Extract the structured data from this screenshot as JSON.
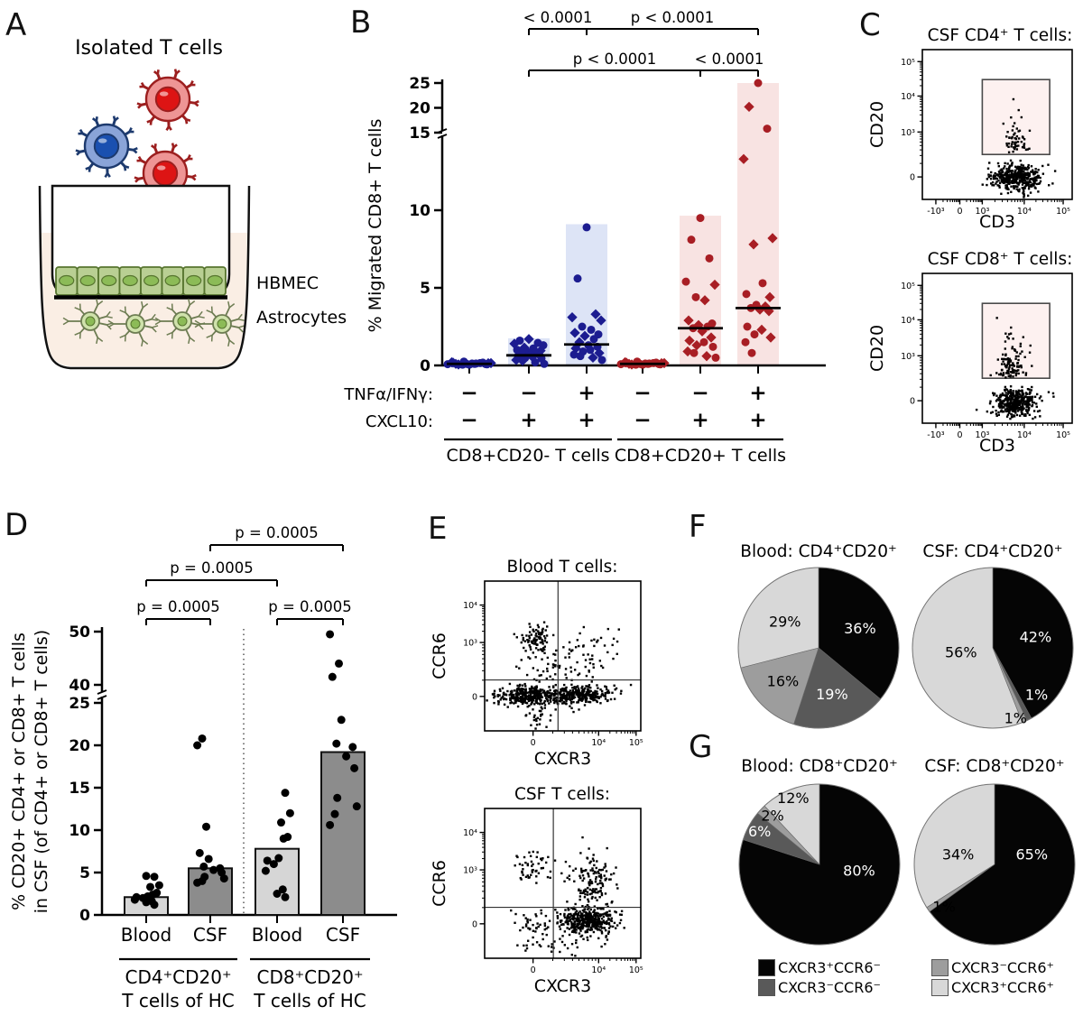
{
  "panel_labels": {
    "A": "A",
    "B": "B",
    "C": "C",
    "D": "D",
    "E": "E",
    "F": "F",
    "G": "G"
  },
  "panelA": {
    "title": "Isolated T cells",
    "hbmec_label": "HBMEC",
    "astrocytes_label": "Astrocytes",
    "colors": {
      "medium": "#faeee4",
      "cell_fill": "#b9cf93",
      "cell_nucleus": "#8cbb57",
      "cell_stroke": "#57752f",
      "astro_fill": "#cfe2ab",
      "astro_stroke": "#6d7c52",
      "red_outer": "#ee9595",
      "red_core": "#dd1414",
      "red_stroke": "#9c1f1f",
      "blue_outer": "#8aa4d8",
      "blue_core": "#1a50b0",
      "blue_stroke": "#1d3a6e"
    }
  },
  "chart_data": {
    "B": {
      "type": "scatter",
      "ylabel": "% Migrated CD8+ T cells",
      "yticks": [
        0,
        5,
        10,
        15,
        20,
        25
      ],
      "break_after": 15,
      "colors": {
        "blue": "#1c1c90",
        "red": "#a81e24",
        "blue_bar": "#dde4f6",
        "red_bar": "#f8e3e2"
      },
      "groups": [
        {
          "color": "blue",
          "bar": null,
          "median": 0.1,
          "points": [
            0.05,
            0.1,
            0.18,
            0.08,
            0.15,
            0.05,
            0.12,
            0.2,
            0.07,
            0.1,
            0.15,
            0.06,
            0.12,
            0.09,
            0.18,
            0.1,
            0.25,
            0.14
          ],
          "shapes": "cdccdccdcccdccdccd"
        },
        {
          "color": "blue",
          "bar": 1.75,
          "median": 0.65,
          "points": [
            1.7,
            1.6,
            1.45,
            1.4,
            1.3,
            1.15,
            1.1,
            1.0,
            0.95,
            0.9,
            0.85,
            0.8,
            0.7,
            0.65,
            0.6,
            0.55,
            0.5,
            0.45,
            0.35,
            0.3,
            0.2,
            0.1
          ],
          "shapes": "dccdcdccddcccdcdccddcc"
        },
        {
          "color": "blue",
          "bar": 9.1,
          "median": 1.35,
          "points": [
            8.9,
            5.6,
            3.3,
            3.1,
            2.9,
            2.5,
            2.3,
            2.1,
            2.0,
            1.9,
            1.7,
            1.5,
            1.3,
            1.2,
            1.1,
            1.0,
            0.9,
            0.8,
            0.7,
            0.6,
            0.5,
            0.35
          ],
          "shapes": "ccdddccdcdcdccdccdccdc"
        },
        {
          "color": "red",
          "bar": null,
          "median": 0.1,
          "points": [
            0.05,
            0.1,
            0.18,
            0.08,
            0.15,
            0.05,
            0.12,
            0.2,
            0.07,
            0.1,
            0.15,
            0.06,
            0.12,
            0.09,
            0.18,
            0.1,
            0.25,
            0.14
          ],
          "shapes": "cdccdccdcccdccdccd"
        },
        {
          "color": "red",
          "bar": 9.65,
          "median": 2.4,
          "points": [
            9.5,
            8.1,
            6.9,
            5.4,
            5.2,
            4.4,
            4.2,
            2.9,
            2.7,
            2.6,
            2.5,
            2.4,
            2.2,
            1.8,
            1.6,
            1.5,
            1.3,
            1.2,
            0.9,
            0.8,
            0.6,
            0.5
          ],
          "shapes": "ccccdcddcdccdddcdcdcdc"
        },
        {
          "color": "red",
          "bar": 25,
          "median": 3.7,
          "points": [
            25,
            20.2,
            15.8,
            13.3,
            8.2,
            7.8,
            5.3,
            4.6,
            4.4,
            3.9,
            3.8,
            3.7,
            3.6,
            3.5,
            2.5,
            2.3,
            2.0,
            1.8,
            1.5,
            0.8
          ],
          "shapes": "cdcdddccdcdcddcdcdcc"
        }
      ],
      "condition_rows": [
        {
          "label": "TNFα/IFNγ:",
          "values": [
            "−",
            "−",
            "+",
            "−",
            "−",
            "+"
          ]
        },
        {
          "label": "CXCL10:",
          "values": [
            "−",
            "+",
            "+",
            "−",
            "+",
            "+"
          ]
        }
      ],
      "group_labels": [
        "CD8+CD20- T cells",
        "CD8+CD20+ T cells"
      ],
      "significance": [
        {
          "a": 1,
          "b": 2,
          "row": 0,
          "label": "< 0.0001"
        },
        {
          "a": 2,
          "b": 5,
          "row": 0,
          "label": "p < 0.0001"
        },
        {
          "a": 1,
          "b": 4,
          "row": 1,
          "label": "p < 0.0001"
        },
        {
          "a": 4,
          "b": 5,
          "row": 1,
          "label": "< 0.0001"
        }
      ]
    },
    "C": [
      {
        "title": "CSF CD4⁺ T cells:",
        "xlabel": "CD3",
        "ylabel": "CD20",
        "seed": 7,
        "xticks": [
          {
            "t": "-10³",
            "f": 0.09
          },
          {
            "t": "0",
            "f": 0.25
          },
          {
            "t": "10³",
            "f": 0.4
          },
          {
            "t": "10⁴",
            "f": 0.68
          },
          {
            "t": "10⁵",
            "f": 0.94
          }
        ],
        "yticks": [
          {
            "t": "0",
            "f": 0.15
          },
          {
            "t": "10³",
            "f": 0.45
          },
          {
            "t": "10⁴",
            "f": 0.69
          },
          {
            "t": "10⁵",
            "f": 0.92
          }
        ],
        "gate": {
          "x0": 0.4,
          "x1": 0.85,
          "y0": 0.3,
          "y1": 0.8,
          "fill": "#fdf1f0",
          "stroke": "#4a4a4a"
        },
        "clusters": [
          {
            "cx": 0.63,
            "cy": 0.14,
            "sx": 0.085,
            "sy": 0.042,
            "n": 420
          },
          {
            "cx": 0.62,
            "cy": 0.31,
            "sx": 0.04,
            "tail": 0.115,
            "n": 55
          }
        ]
      },
      {
        "title": "CSF CD8⁺ T cells:",
        "xlabel": "CD3",
        "ylabel": "CD20",
        "seed": 13,
        "xticks": [
          {
            "t": "-10³",
            "f": 0.09
          },
          {
            "t": "0",
            "f": 0.25
          },
          {
            "t": "10³",
            "f": 0.4
          },
          {
            "t": "10⁴",
            "f": 0.68
          },
          {
            "t": "10⁵",
            "f": 0.94
          }
        ],
        "yticks": [
          {
            "t": "0",
            "f": 0.15
          },
          {
            "t": "10³",
            "f": 0.45
          },
          {
            "t": "10⁴",
            "f": 0.69
          },
          {
            "t": "10⁵",
            "f": 0.92
          }
        ],
        "gate": {
          "x0": 0.4,
          "x1": 0.85,
          "y0": 0.3,
          "y1": 0.8,
          "fill": "#fdf1f0",
          "stroke": "#4a4a4a"
        },
        "clusters": [
          {
            "cx": 0.62,
            "cy": 0.14,
            "sx": 0.075,
            "sy": 0.045,
            "n": 400
          },
          {
            "cx": 0.6,
            "cy": 0.31,
            "sx": 0.045,
            "tail": 0.12,
            "n": 115
          }
        ]
      }
    ],
    "D": {
      "type": "bar",
      "ylabel_lines": [
        "% CD20+ CD4+ or CD8+ T cells",
        "in CSF (of CD4+ or CD8+ T cells)"
      ],
      "yticks": [
        0,
        5,
        10,
        15,
        20,
        25
      ],
      "yticks_upper": [
        40,
        50
      ],
      "bars": [
        {
          "x_label": "Blood",
          "value": 2.1,
          "fill": "#d6d6d6",
          "points": [
            4.6,
            4.5,
            3.5,
            3.3,
            2.6,
            2.4,
            2.2,
            2.1,
            2.0,
            1.8,
            1.6,
            1.5,
            1.2
          ]
        },
        {
          "x_label": "CSF",
          "value": 5.5,
          "fill": "#8c8c8c",
          "points": [
            20.8,
            20.0,
            10.4,
            7.3,
            6.6,
            5.7,
            5.5,
            5.3,
            5.0,
            4.5,
            4.3,
            4.0,
            3.8
          ]
        },
        {
          "x_label": "Blood",
          "value": 7.8,
          "fill": "#d6d6d6",
          "points": [
            14.4,
            12.0,
            10.9,
            9.2,
            9.0,
            6.7,
            6.4,
            6.0,
            5.2,
            3.0,
            2.5,
            2.1
          ]
        },
        {
          "x_label": "CSF",
          "value": 19.2,
          "fill": "#8c8c8c",
          "points": [
            49.5,
            44.0,
            41.5,
            23.0,
            20.2,
            19.8,
            18.7,
            17.3,
            13.8,
            12.8,
            11.9,
            10.6
          ]
        }
      ],
      "group_labels": [
        [
          "CD4⁺CD20⁺",
          "T cells of HC"
        ],
        [
          "CD8⁺CD20⁺",
          "T cells of HC"
        ]
      ],
      "significance": [
        {
          "a": 0,
          "b": 1,
          "row": 0,
          "label": "p = 0.0005"
        },
        {
          "a": 2,
          "b": 3,
          "row": 0,
          "label": "p = 0.0005"
        },
        {
          "a": 0,
          "b": 2,
          "row": 1,
          "label": "p = 0.0005"
        },
        {
          "a": 1,
          "b": 3,
          "row": 2,
          "label": "p = 0.0005"
        }
      ]
    },
    "E": [
      {
        "title": "Blood T cells:",
        "xlabel": "CXCR3",
        "ylabel": "CCR6",
        "seed": 21,
        "xticks": [
          {
            "t": "0",
            "f": 0.31
          },
          {
            "t": "10⁴",
            "f": 0.73
          },
          {
            "t": "10⁵",
            "f": 0.97
          }
        ],
        "yticks": [
          {
            "t": "0",
            "f": 0.23
          },
          {
            "t": "10³",
            "f": 0.59
          },
          {
            "t": "10⁴",
            "f": 0.84
          }
        ],
        "quad": {
          "vx": 0.47,
          "hy": 0.34
        },
        "clusters": [
          {
            "cx": 0.27,
            "cy": 0.235,
            "sx": 0.1,
            "sy": 0.03,
            "n": 320
          },
          {
            "cx": 0.6,
            "cy": 0.24,
            "sx": 0.11,
            "sy": 0.03,
            "n": 300
          },
          {
            "cx": 0.33,
            "cy": 0.62,
            "sx": 0.055,
            "sy": 0.045,
            "n": 85
          },
          {
            "cx": 0.36,
            "cy": 0.45,
            "sx": 0.1,
            "sy": 0.08,
            "n": 45
          },
          {
            "cx": 0.66,
            "cy": 0.5,
            "sx": 0.1,
            "sy": 0.09,
            "n": 55
          },
          {
            "cx": 0.33,
            "cy": 0.1,
            "sx": 0.07,
            "sy": 0.05,
            "n": 30
          }
        ]
      },
      {
        "title": "CSF T cells:",
        "xlabel": "CXCR3",
        "ylabel": "CCR6",
        "seed": 42,
        "xticks": [
          {
            "t": "0",
            "f": 0.31
          },
          {
            "t": "10⁴",
            "f": 0.73
          },
          {
            "t": "10⁵",
            "f": 0.97
          }
        ],
        "yticks": [
          {
            "t": "0",
            "f": 0.23
          },
          {
            "t": "10³",
            "f": 0.59
          },
          {
            "t": "10⁴",
            "f": 0.84
          }
        ],
        "quad": {
          "vx": 0.44,
          "hy": 0.34
        },
        "clusters": [
          {
            "cx": 0.655,
            "cy": 0.245,
            "sx": 0.085,
            "sy": 0.04,
            "n": 420
          },
          {
            "cx": 0.7,
            "cy": 0.52,
            "sx": 0.075,
            "sy": 0.1,
            "n": 150
          },
          {
            "cx": 0.3,
            "cy": 0.6,
            "sx": 0.065,
            "sy": 0.055,
            "n": 50
          },
          {
            "cx": 0.3,
            "cy": 0.22,
            "sx": 0.06,
            "sy": 0.06,
            "n": 40
          },
          {
            "cx": 0.52,
            "cy": 0.09,
            "sx": 0.12,
            "sy": 0.04,
            "n": 30
          }
        ]
      }
    ],
    "F": [
      {
        "title": "Blood: CD4⁺CD20⁺",
        "slices": [
          {
            "label": "36%",
            "value": 36,
            "color": "#050505",
            "lr": 0.57,
            "lc": "#ffffff"
          },
          {
            "label": "19%",
            "value": 19,
            "color": "#595959",
            "lr": 0.6,
            "lc": "#ffffff"
          },
          {
            "label": "16%",
            "value": 16,
            "color": "#9d9d9d",
            "lr": 0.61,
            "lc": "#000000"
          },
          {
            "label": "29%",
            "value": 29,
            "color": "#d8d8d8",
            "lr": 0.53,
            "lc": "#000000"
          }
        ]
      },
      {
        "title": "CSF: CD4⁺CD20⁺",
        "slices": [
          {
            "label": "42%",
            "value": 42,
            "color": "#050505",
            "lr": 0.55,
            "lc": "#ffffff"
          },
          {
            "label": "1%",
            "value": 1,
            "color": "#595959",
            "lr": 0.8,
            "lc": "#ffffff",
            "la": 137
          },
          {
            "label": "1%",
            "value": 1,
            "color": "#9d9d9d",
            "lr": 0.92,
            "lc": "#000000",
            "la": 162
          },
          {
            "label": "56%",
            "value": 56,
            "color": "#d8d8d8",
            "lr": 0.4,
            "lc": "#000000",
            "la": 262
          }
        ]
      }
    ],
    "G": [
      {
        "title": "Blood: CD8⁺CD20⁺",
        "slices": [
          {
            "label": "80%",
            "value": 80,
            "color": "#050505",
            "lr": 0.5,
            "lc": "#ffffff",
            "la": 99
          },
          {
            "label": "6%",
            "value": 6,
            "color": "#595959",
            "lr": 0.85,
            "lc": "#ffffff"
          },
          {
            "label": "2%",
            "value": 2,
            "color": "#9d9d9d",
            "lr": 0.84,
            "lc": "#000000",
            "la": 316
          },
          {
            "label": "12%",
            "value": 12,
            "color": "#d8d8d8",
            "lr": 0.89,
            "lc": "#000000"
          }
        ]
      },
      {
        "title": "CSF: CD8⁺CD20⁺",
        "slices": [
          {
            "label": "65%",
            "value": 65,
            "color": "#050505",
            "lr": 0.48,
            "lc": "#ffffff",
            "la": 75
          },
          {
            "label": "1%",
            "value": 1,
            "color": "#9d9d9d",
            "lr": 0.82,
            "lc": "#000000",
            "la": 230
          },
          {
            "label": "34%",
            "value": 34,
            "color": "#d8d8d8",
            "lr": 0.47,
            "lc": "#000000",
            "la": 285
          }
        ]
      }
    ]
  },
  "legend": {
    "items": [
      {
        "label": "CXCR3⁺CCR6⁻",
        "color": "#050505"
      },
      {
        "label": "CXCR3⁻CCR6⁺",
        "color": "#9d9d9d"
      },
      {
        "label": "CXCR3⁻CCR6⁻",
        "color": "#595959"
      },
      {
        "label": "CXCR3⁺CCR6⁺",
        "color": "#d8d8d8"
      }
    ]
  }
}
